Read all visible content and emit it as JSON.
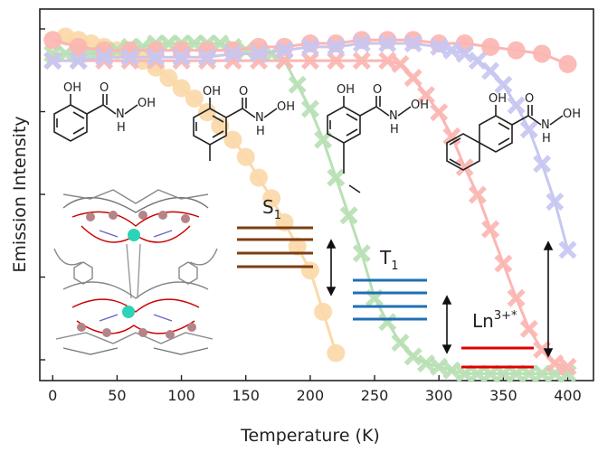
{
  "chart_data": {
    "type": "scatter",
    "title": "",
    "xlabel": "Temperature (K)",
    "ylabel": "Emission Intensity",
    "xlim": [
      -10,
      420
    ],
    "ylim": [
      0,
      1.08
    ],
    "xticks": [
      0,
      50,
      100,
      150,
      200,
      250,
      300,
      350,
      400
    ],
    "yticks_count": 5,
    "y_tick_labels_shown": false,
    "legend": "none",
    "series": [
      {
        "color": "#fbd9a9",
        "marker": "circle",
        "points": [
          [
            10,
            1.0
          ],
          [
            20,
            0.99
          ],
          [
            30,
            0.98
          ],
          [
            40,
            0.97
          ],
          [
            50,
            0.96
          ],
          [
            60,
            0.95
          ],
          [
            70,
            0.93
          ],
          [
            80,
            0.91
          ],
          [
            90,
            0.88
          ],
          [
            100,
            0.85
          ],
          [
            110,
            0.82
          ],
          [
            120,
            0.78
          ],
          [
            130,
            0.74
          ],
          [
            140,
            0.7
          ],
          [
            150,
            0.65
          ],
          [
            160,
            0.59
          ],
          [
            170,
            0.53
          ],
          [
            180,
            0.46
          ],
          [
            190,
            0.39
          ],
          [
            200,
            0.32
          ],
          [
            210,
            0.2
          ],
          [
            220,
            0.08
          ]
        ]
      },
      {
        "color": "#b9e0b4",
        "marker": "cross",
        "points": [
          [
            0,
            0.95
          ],
          [
            10,
            0.95
          ],
          [
            20,
            0.95
          ],
          [
            30,
            0.95
          ],
          [
            40,
            0.95
          ],
          [
            50,
            0.96
          ],
          [
            60,
            0.97
          ],
          [
            70,
            0.97
          ],
          [
            80,
            0.98
          ],
          [
            90,
            0.98
          ],
          [
            100,
            0.98
          ],
          [
            110,
            0.98
          ],
          [
            120,
            0.98
          ],
          [
            130,
            0.98
          ],
          [
            140,
            0.97
          ],
          [
            150,
            0.96
          ],
          [
            160,
            0.96
          ],
          [
            170,
            0.95
          ],
          [
            180,
            0.93
          ],
          [
            190,
            0.86
          ],
          [
            200,
            0.79
          ],
          [
            210,
            0.7
          ],
          [
            220,
            0.59
          ],
          [
            230,
            0.48
          ],
          [
            240,
            0.37
          ],
          [
            250,
            0.24
          ],
          [
            260,
            0.17
          ],
          [
            270,
            0.11
          ],
          [
            280,
            0.07
          ],
          [
            290,
            0.05
          ],
          [
            300,
            0.04
          ],
          [
            310,
            0.03
          ],
          [
            320,
            0.02
          ],
          [
            330,
            0.02
          ],
          [
            340,
            0.02
          ],
          [
            350,
            0.02
          ],
          [
            360,
            0.02
          ],
          [
            370,
            0.02
          ],
          [
            380,
            0.02
          ],
          [
            390,
            0.02
          ],
          [
            400,
            0.02
          ]
        ]
      },
      {
        "color": "#fbb6b2",
        "marker": "circle",
        "points": [
          [
            0,
            0.99
          ],
          [
            20,
            0.97
          ],
          [
            40,
            0.96
          ],
          [
            60,
            0.96
          ],
          [
            80,
            0.96
          ],
          [
            100,
            0.96
          ],
          [
            120,
            0.96
          ],
          [
            140,
            0.96
          ],
          [
            160,
            0.97
          ],
          [
            180,
            0.97
          ],
          [
            200,
            0.98
          ],
          [
            220,
            0.98
          ],
          [
            240,
            0.99
          ],
          [
            260,
            0.99
          ],
          [
            280,
            0.99
          ],
          [
            300,
            0.98
          ],
          [
            320,
            0.98
          ],
          [
            340,
            0.97
          ],
          [
            360,
            0.96
          ],
          [
            380,
            0.95
          ],
          [
            400,
            0.92
          ]
        ]
      },
      {
        "color": "#fbb6b2",
        "marker": "cross",
        "points": [
          [
            0,
            0.93
          ],
          [
            20,
            0.93
          ],
          [
            40,
            0.93
          ],
          [
            60,
            0.93
          ],
          [
            80,
            0.93
          ],
          [
            100,
            0.93
          ],
          [
            120,
            0.93
          ],
          [
            140,
            0.93
          ],
          [
            160,
            0.93
          ],
          [
            180,
            0.93
          ],
          [
            200,
            0.93
          ],
          [
            220,
            0.93
          ],
          [
            240,
            0.93
          ],
          [
            260,
            0.93
          ],
          [
            270,
            0.92
          ],
          [
            280,
            0.88
          ],
          [
            290,
            0.83
          ],
          [
            300,
            0.78
          ],
          [
            310,
            0.71
          ],
          [
            320,
            0.62
          ],
          [
            330,
            0.54
          ],
          [
            340,
            0.44
          ],
          [
            350,
            0.34
          ],
          [
            360,
            0.24
          ],
          [
            370,
            0.15
          ],
          [
            380,
            0.09
          ],
          [
            390,
            0.05
          ],
          [
            400,
            0.04
          ]
        ]
      },
      {
        "color": "#c7c7f2",
        "marker": "cross",
        "points": [
          [
            0,
            0.93
          ],
          [
            20,
            0.93
          ],
          [
            40,
            0.94
          ],
          [
            60,
            0.94
          ],
          [
            80,
            0.94
          ],
          [
            100,
            0.94
          ],
          [
            120,
            0.94
          ],
          [
            140,
            0.95
          ],
          [
            160,
            0.95
          ],
          [
            180,
            0.96
          ],
          [
            200,
            0.97
          ],
          [
            220,
            0.97
          ],
          [
            240,
            0.98
          ],
          [
            260,
            0.98
          ],
          [
            280,
            0.98
          ],
          [
            300,
            0.97
          ],
          [
            310,
            0.96
          ],
          [
            320,
            0.95
          ],
          [
            330,
            0.93
          ],
          [
            340,
            0.9
          ],
          [
            350,
            0.86
          ],
          [
            360,
            0.8
          ],
          [
            370,
            0.73
          ],
          [
            380,
            0.63
          ],
          [
            390,
            0.52
          ],
          [
            400,
            0.38
          ]
        ]
      }
    ],
    "annotations": {
      "s1_label": "S",
      "s1_sub": "1",
      "t1_label": "T",
      "t1_sub": "1",
      "ln_label": "Ln",
      "ln_sup": "3+*",
      "ligands": [
        {
          "oh": "OH",
          "o": "O",
          "n": "N",
          "h": "H",
          "noh": "OH"
        },
        {
          "oh": "OH",
          "o": "O",
          "n": "N",
          "h": "H",
          "noh": "OH"
        },
        {
          "oh": "OH",
          "o": "O",
          "n": "N",
          "h": "H",
          "noh": "OH"
        },
        {
          "oh": "OH",
          "o": "O",
          "n": "N",
          "h": "H",
          "noh": "OH"
        }
      ]
    }
  }
}
